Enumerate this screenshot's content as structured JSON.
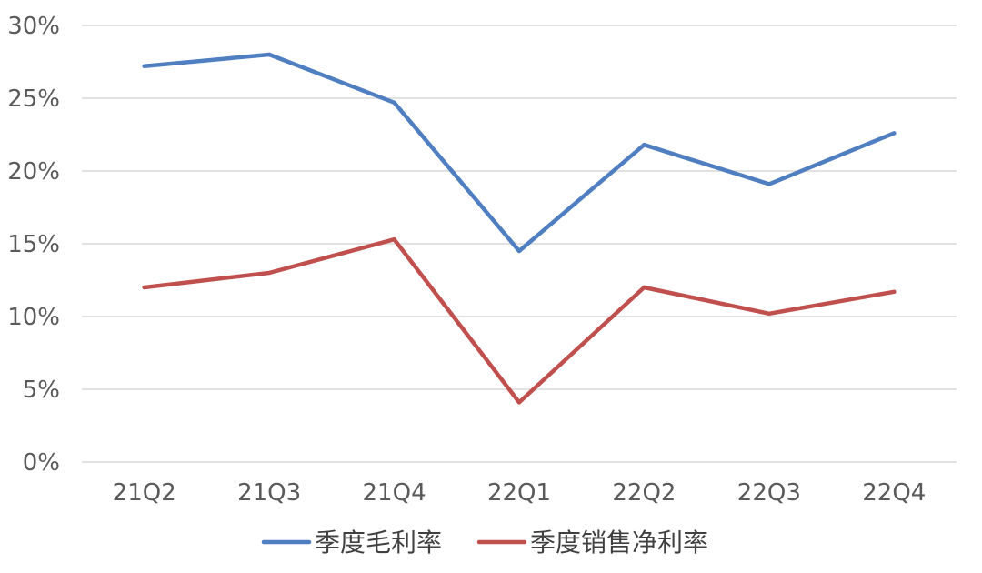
{
  "chart_data": {
    "type": "line",
    "title": "",
    "xlabel": "",
    "ylabel": "",
    "categories": [
      "21Q2",
      "21Q3",
      "21Q4",
      "22Q1",
      "22Q2",
      "22Q3",
      "22Q4"
    ],
    "ylim": [
      0,
      30
    ],
    "yticks": [
      0,
      5,
      10,
      15,
      20,
      25,
      30
    ],
    "ytick_labels": [
      "0%",
      "5%",
      "10%",
      "15%",
      "20%",
      "25%",
      "30%"
    ],
    "grid": true,
    "legend_position": "bottom",
    "series": [
      {
        "name": "季度毛利率",
        "color": "#4f7fc1",
        "values": [
          27.2,
          28.0,
          24.7,
          14.5,
          21.8,
          19.1,
          22.6
        ]
      },
      {
        "name": "季度销售净利率",
        "color": "#c0504d",
        "values": [
          12.0,
          13.0,
          15.3,
          4.1,
          12.0,
          10.2,
          11.7
        ]
      }
    ]
  }
}
